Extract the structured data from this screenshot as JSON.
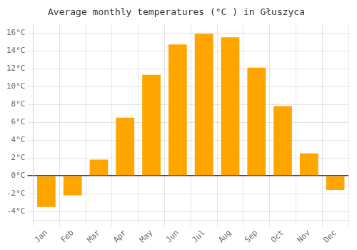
{
  "chart_data": {
    "type": "bar",
    "title": "Average monthly temperatures (°C ) in Głuszyca",
    "categories": [
      "Jan",
      "Feb",
      "Mar",
      "Apr",
      "May",
      "Jun",
      "Jul",
      "Aug",
      "Sep",
      "Oct",
      "Nov",
      "Dec"
    ],
    "values": [
      -3.5,
      -2.2,
      1.8,
      6.5,
      11.3,
      14.7,
      15.9,
      15.5,
      12.1,
      7.8,
      2.5,
      -1.6
    ],
    "color": "#FFA500",
    "ylim": [
      -5,
      17
    ],
    "yticks": [
      {
        "value": -4,
        "label": "-4°C"
      },
      {
        "value": -2,
        "label": "-2°C"
      },
      {
        "value": 0,
        "label": "0°C"
      },
      {
        "value": 2,
        "label": "2°C"
      },
      {
        "value": 4,
        "label": "4°C"
      },
      {
        "value": 6,
        "label": "6°C"
      },
      {
        "value": 8,
        "label": "8°C"
      },
      {
        "value": 10,
        "label": "10°C"
      },
      {
        "value": 12,
        "label": "12°C"
      },
      {
        "value": 14,
        "label": "14°C"
      },
      {
        "value": 16,
        "label": "16°C"
      }
    ],
    "grid": true
  }
}
